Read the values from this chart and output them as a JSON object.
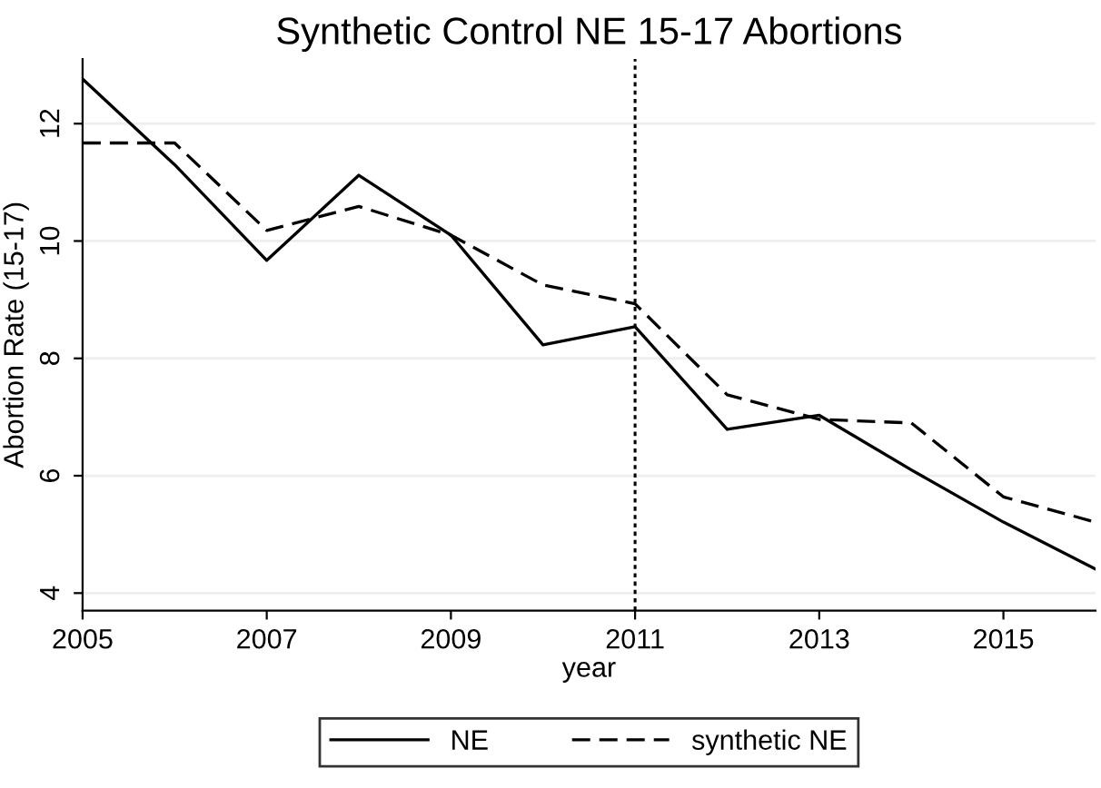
{
  "chart_data": {
    "type": "line",
    "title": "Synthetic Control NE 15-17 Abortions",
    "xlabel": "year",
    "ylabel": "Abortion Rate (15-17)",
    "x": [
      2005,
      2006,
      2007,
      2008,
      2009,
      2010,
      2011,
      2012,
      2013,
      2014,
      2015,
      2016
    ],
    "series": [
      {
        "name": "NE",
        "color": "#000000",
        "line_style": "solid",
        "values": [
          12.76,
          11.3,
          9.67,
          11.12,
          10.1,
          8.23,
          8.54,
          6.79,
          7.03,
          6.1,
          5.21,
          4.41
        ]
      },
      {
        "name": "synthetic NE",
        "color": "#000000",
        "line_style": "dashed",
        "values": [
          11.67,
          11.67,
          10.18,
          10.59,
          10.1,
          9.25,
          8.93,
          7.38,
          6.96,
          6.9,
          5.64,
          5.21
        ]
      }
    ],
    "xlim": [
      2005,
      2016
    ],
    "xticks": [
      2005,
      2007,
      2009,
      2011,
      2013,
      2015
    ],
    "ylim": [
      3.7,
      13.1
    ],
    "yticks": [
      4,
      6,
      8,
      10,
      12
    ],
    "ref_lines": [
      {
        "axis": "x",
        "value": 2011,
        "color": "#000000",
        "line_style": "dotted"
      }
    ],
    "grid": "y",
    "legend": "bottom"
  }
}
